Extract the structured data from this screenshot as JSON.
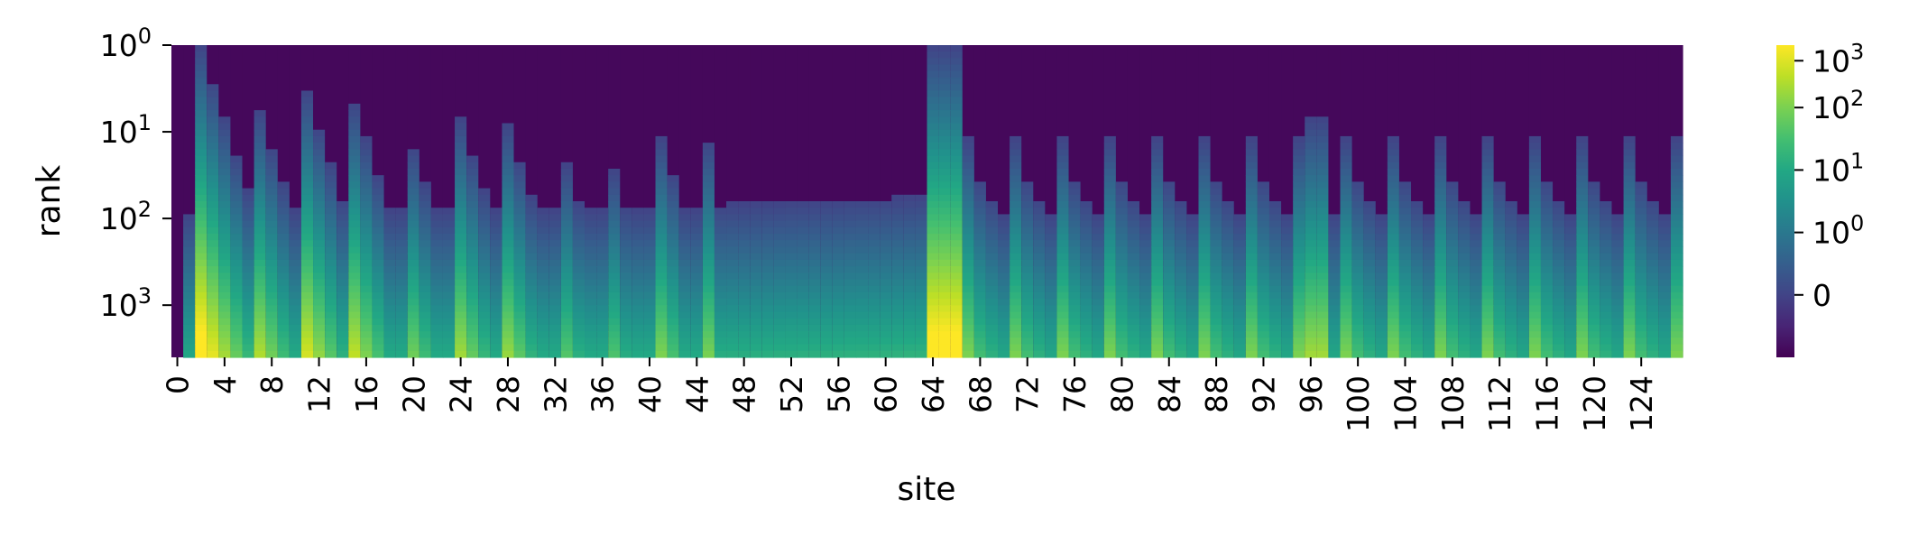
{
  "chart_data": {
    "type": "heatmap",
    "title": "",
    "xlabel": "site",
    "ylabel": "rank",
    "colormap": "viridis",
    "color_scale": "symlog",
    "n_sites": 128,
    "x_tick_labels": [
      "0",
      "4",
      "8",
      "12",
      "16",
      "20",
      "24",
      "28",
      "32",
      "36",
      "40",
      "44",
      "48",
      "52",
      "56",
      "60",
      "64",
      "68",
      "72",
      "76",
      "80",
      "84",
      "88",
      "92",
      "96",
      "100",
      "104",
      "108",
      "112",
      "116",
      "120",
      "124"
    ],
    "y_axis": {
      "scale": "log",
      "ticks": [
        {
          "value": 1,
          "base": "10",
          "exp": "0"
        },
        {
          "value": 10,
          "base": "10",
          "exp": "1"
        },
        {
          "value": 100,
          "base": "10",
          "exp": "2"
        },
        {
          "value": 1000,
          "base": "10",
          "exp": "3"
        }
      ],
      "ylim": [
        1,
        4000
      ]
    },
    "colorbar": {
      "ticks": [
        {
          "base": "0",
          "exp": ""
        },
        {
          "base": "10",
          "exp": "0"
        },
        {
          "base": "10",
          "exp": "1"
        },
        {
          "base": "10",
          "exp": "2"
        },
        {
          "base": "10",
          "exp": "3"
        }
      ],
      "range": [
        -1,
        3000
      ]
    },
    "grid": false,
    "legend": "colorbar-right",
    "description": "Value per site and rank: non-zero columns of varying height (max rank) with values growing from ~0 at low rank to ~3000 at rank ~4000; pattern approximated from the image."
  }
}
